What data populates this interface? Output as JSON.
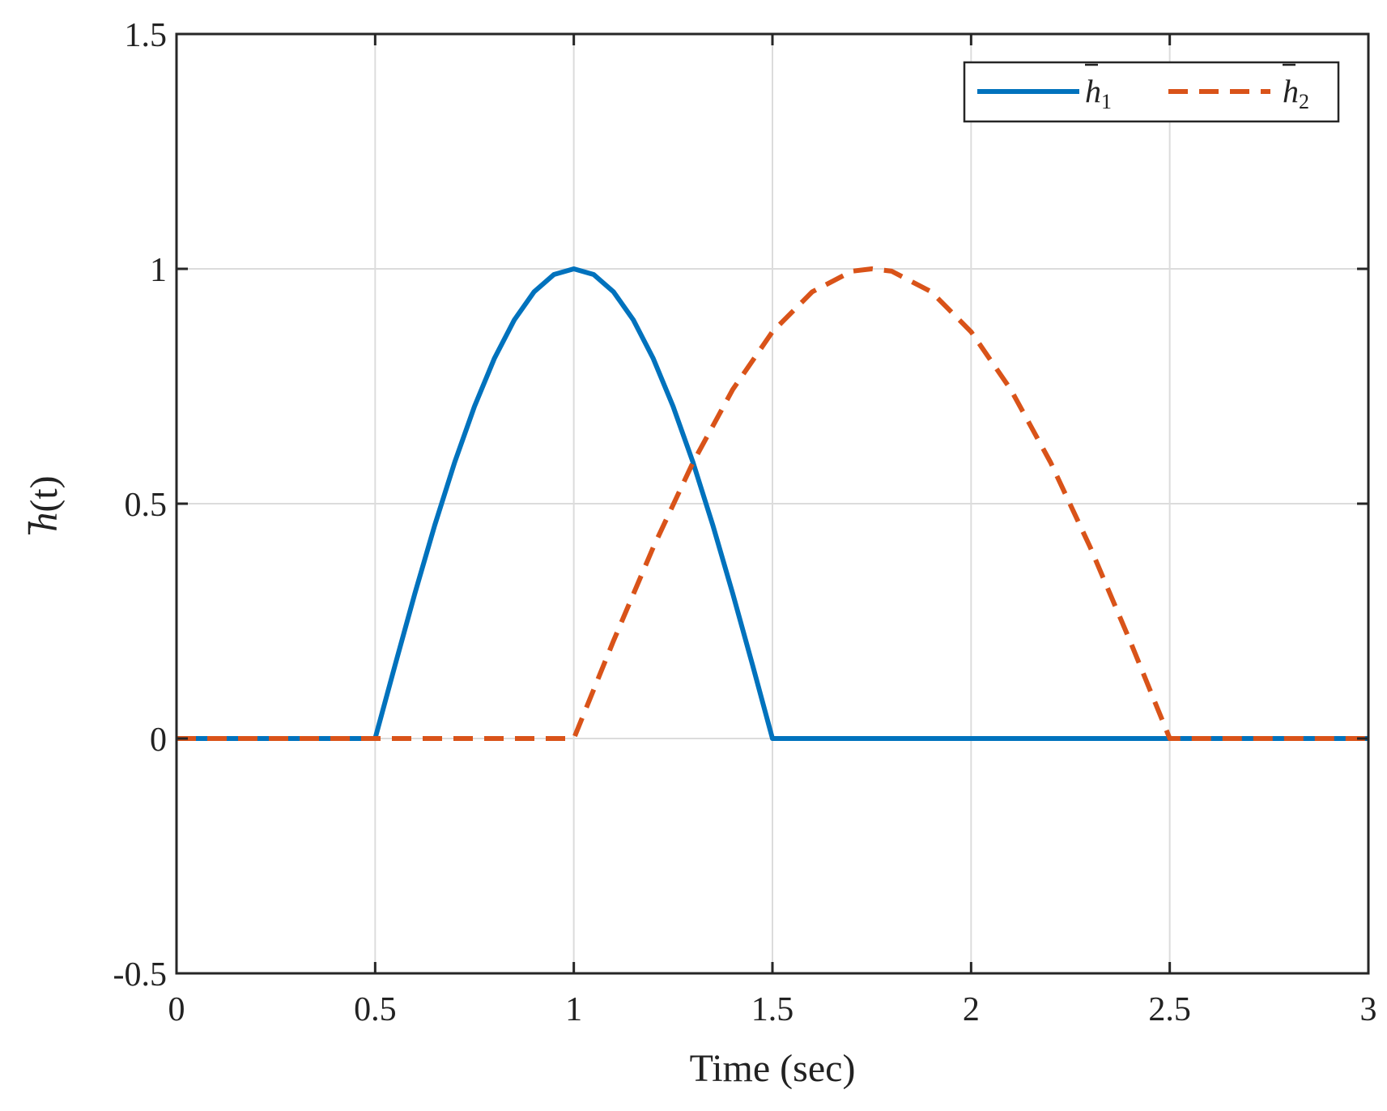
{
  "chart_data": {
    "type": "line",
    "title": "",
    "xlabel": "Time (sec)",
    "ylabel": {
      "symbol": "h",
      "argument": "(t)"
    },
    "xlim": [
      0,
      3
    ],
    "ylim": [
      -0.5,
      1.5
    ],
    "x_ticks": [
      0,
      0.5,
      1,
      1.5,
      2,
      2.5,
      3
    ],
    "x_tick_labels": [
      "0",
      "0.5",
      "1",
      "1.5",
      "2",
      "2.5",
      "3"
    ],
    "y_ticks": [
      -0.5,
      0,
      0.5,
      1,
      1.5
    ],
    "y_tick_labels": [
      "-0.5",
      "0",
      "0.5",
      "1",
      "1.5"
    ],
    "grid": true,
    "legend_position": "top-right",
    "series": [
      {
        "name": "h",
        "name_subscript": "1",
        "color": "#0072BD",
        "line_style": "solid",
        "x": [
          0,
          0.5,
          0.55,
          0.6,
          0.65,
          0.7,
          0.75,
          0.8,
          0.85,
          0.9,
          0.95,
          1.0,
          1.05,
          1.1,
          1.15,
          1.2,
          1.25,
          1.3,
          1.35,
          1.4,
          1.45,
          1.5,
          2.0,
          2.5,
          3.0
        ],
        "y": [
          0,
          0,
          0.156,
          0.309,
          0.454,
          0.588,
          0.707,
          0.809,
          0.891,
          0.951,
          0.988,
          1.0,
          0.988,
          0.951,
          0.891,
          0.809,
          0.707,
          0.588,
          0.454,
          0.309,
          0.156,
          0,
          0,
          0,
          0
        ]
      },
      {
        "name": "h",
        "name_subscript": "2",
        "color": "#D95319",
        "line_style": "dashed",
        "x": [
          0,
          0.5,
          1.0,
          1.1,
          1.2,
          1.3,
          1.4,
          1.5,
          1.6,
          1.7,
          1.75,
          1.8,
          1.9,
          2.0,
          2.1,
          2.2,
          2.3,
          2.4,
          2.5,
          3.0
        ],
        "y": [
          0,
          0,
          0,
          0.208,
          0.407,
          0.588,
          0.743,
          0.866,
          0.951,
          0.995,
          1.0,
          0.995,
          0.951,
          0.866,
          0.743,
          0.588,
          0.407,
          0.208,
          0,
          0
        ]
      }
    ]
  }
}
